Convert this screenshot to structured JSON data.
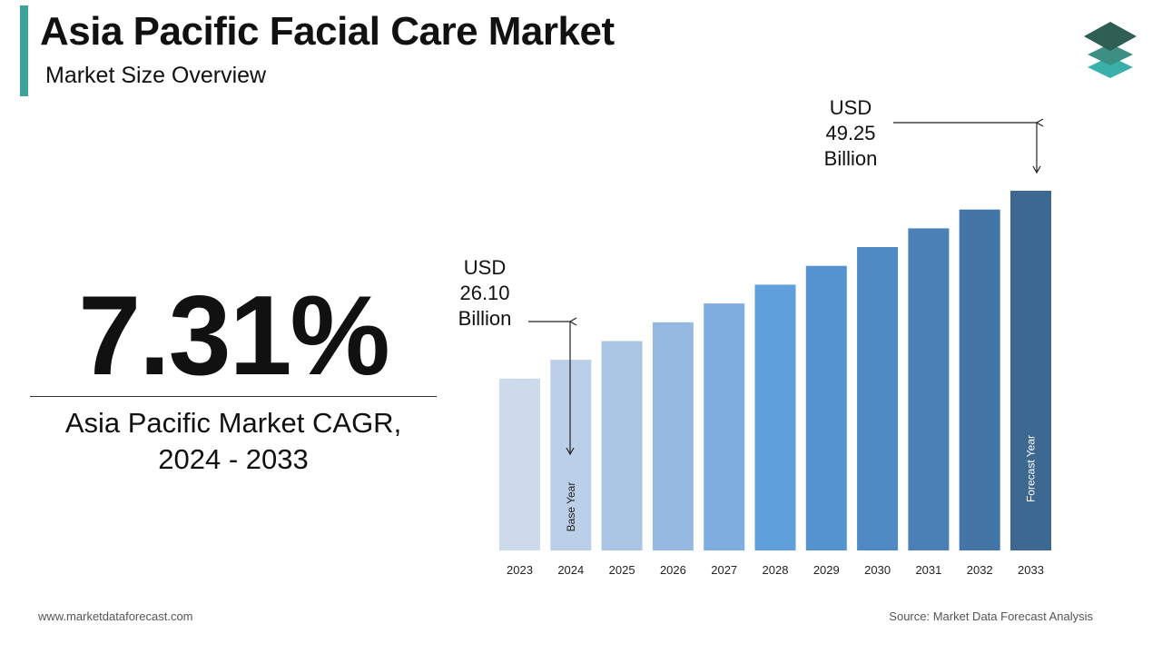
{
  "header": {
    "title": "Asia Pacific Facial Care Market",
    "subtitle": "Market Size Overview"
  },
  "highlight": {
    "cagr_value": "7.31%",
    "cagr_label_line1": "Asia Pacific Market CAGR,",
    "cagr_label_line2": "2024 - 2033"
  },
  "callouts": {
    "base": {
      "line1": "USD",
      "line2": "26.10",
      "line3": "Billion"
    },
    "forecast": {
      "line1": "USD",
      "line2": "49.25",
      "line3": "Billion"
    }
  },
  "footer": {
    "website": "www.marketdataforecast.com",
    "source": "Source: Market Data Forecast Analysis"
  },
  "colors": {
    "accent": "#3aa39a",
    "bars": [
      "#ccdaec",
      "#bccfe8",
      "#aac4e4",
      "#96b9e1",
      "#80ade0",
      "#5f9fdb",
      "#5593d0",
      "#4f89c3",
      "#4a80b6",
      "#4375a7",
      "#3d6892"
    ]
  },
  "chart_data": {
    "type": "bar",
    "categories": [
      "2023",
      "2024",
      "2025",
      "2026",
      "2027",
      "2028",
      "2029",
      "2030",
      "2031",
      "2032",
      "2033"
    ],
    "values": [
      null,
      26.1,
      null,
      null,
      null,
      null,
      null,
      null,
      null,
      null,
      49.25
    ],
    "unit": "USD Billion",
    "bar_labels": {
      "2024": "Base Year",
      "2033": "Forecast Year"
    },
    "ylim": [
      0,
      50
    ],
    "grid": false,
    "legend": "none"
  }
}
